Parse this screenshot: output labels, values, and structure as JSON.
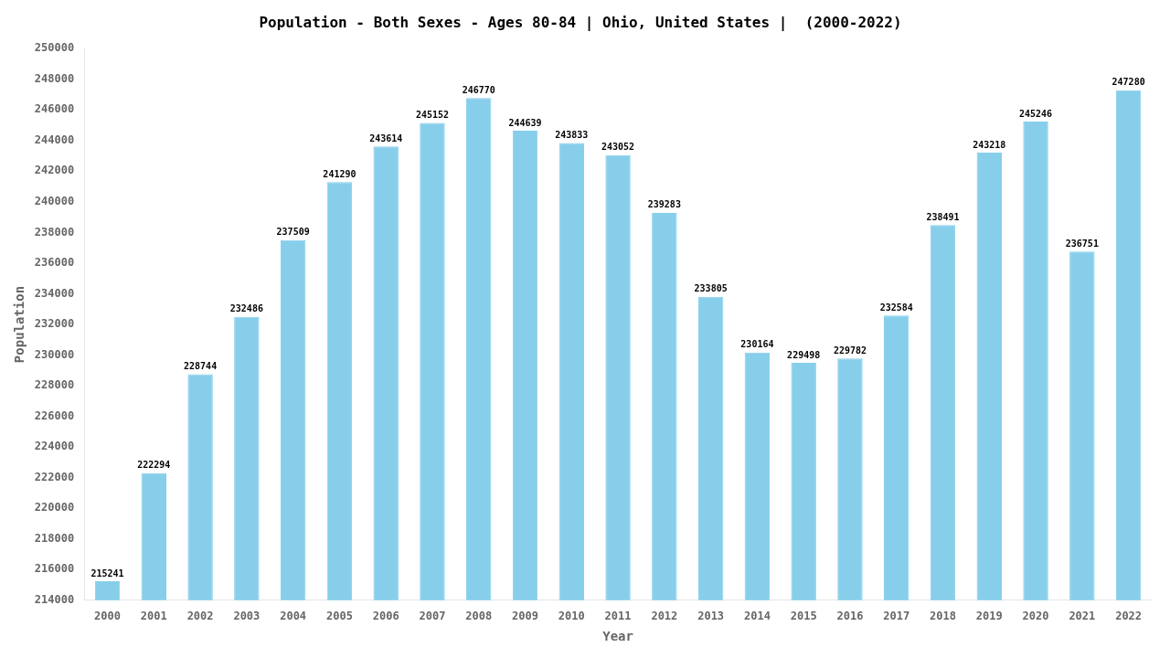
{
  "chart_data": {
    "type": "bar",
    "title": "Population - Both Sexes - Ages 80-84 | Ohio, United States |  (2000-2022)",
    "x_label": "Year",
    "y_label": "Population",
    "categories": [
      "2000",
      "2001",
      "2002",
      "2003",
      "2004",
      "2005",
      "2006",
      "2007",
      "2008",
      "2009",
      "2010",
      "2011",
      "2012",
      "2013",
      "2014",
      "2015",
      "2016",
      "2017",
      "2018",
      "2019",
      "2020",
      "2021",
      "2022"
    ],
    "values": [
      215241,
      222294,
      228744,
      232486,
      237509,
      241290,
      243614,
      245152,
      246770,
      244639,
      243833,
      243052,
      239283,
      233805,
      230164,
      229498,
      229782,
      232584,
      238491,
      243218,
      245246,
      236751,
      247280
    ],
    "color": "#87CEEB",
    "ylim": [
      214000,
      250000
    ],
    "yticks": [
      214000,
      216000,
      218000,
      220000,
      222000,
      224000,
      226000,
      228000,
      230000,
      232000,
      234000,
      236000,
      238000,
      240000,
      242000,
      244000,
      246000,
      248000,
      250000
    ],
    "grid": false,
    "data_labels": true
  }
}
